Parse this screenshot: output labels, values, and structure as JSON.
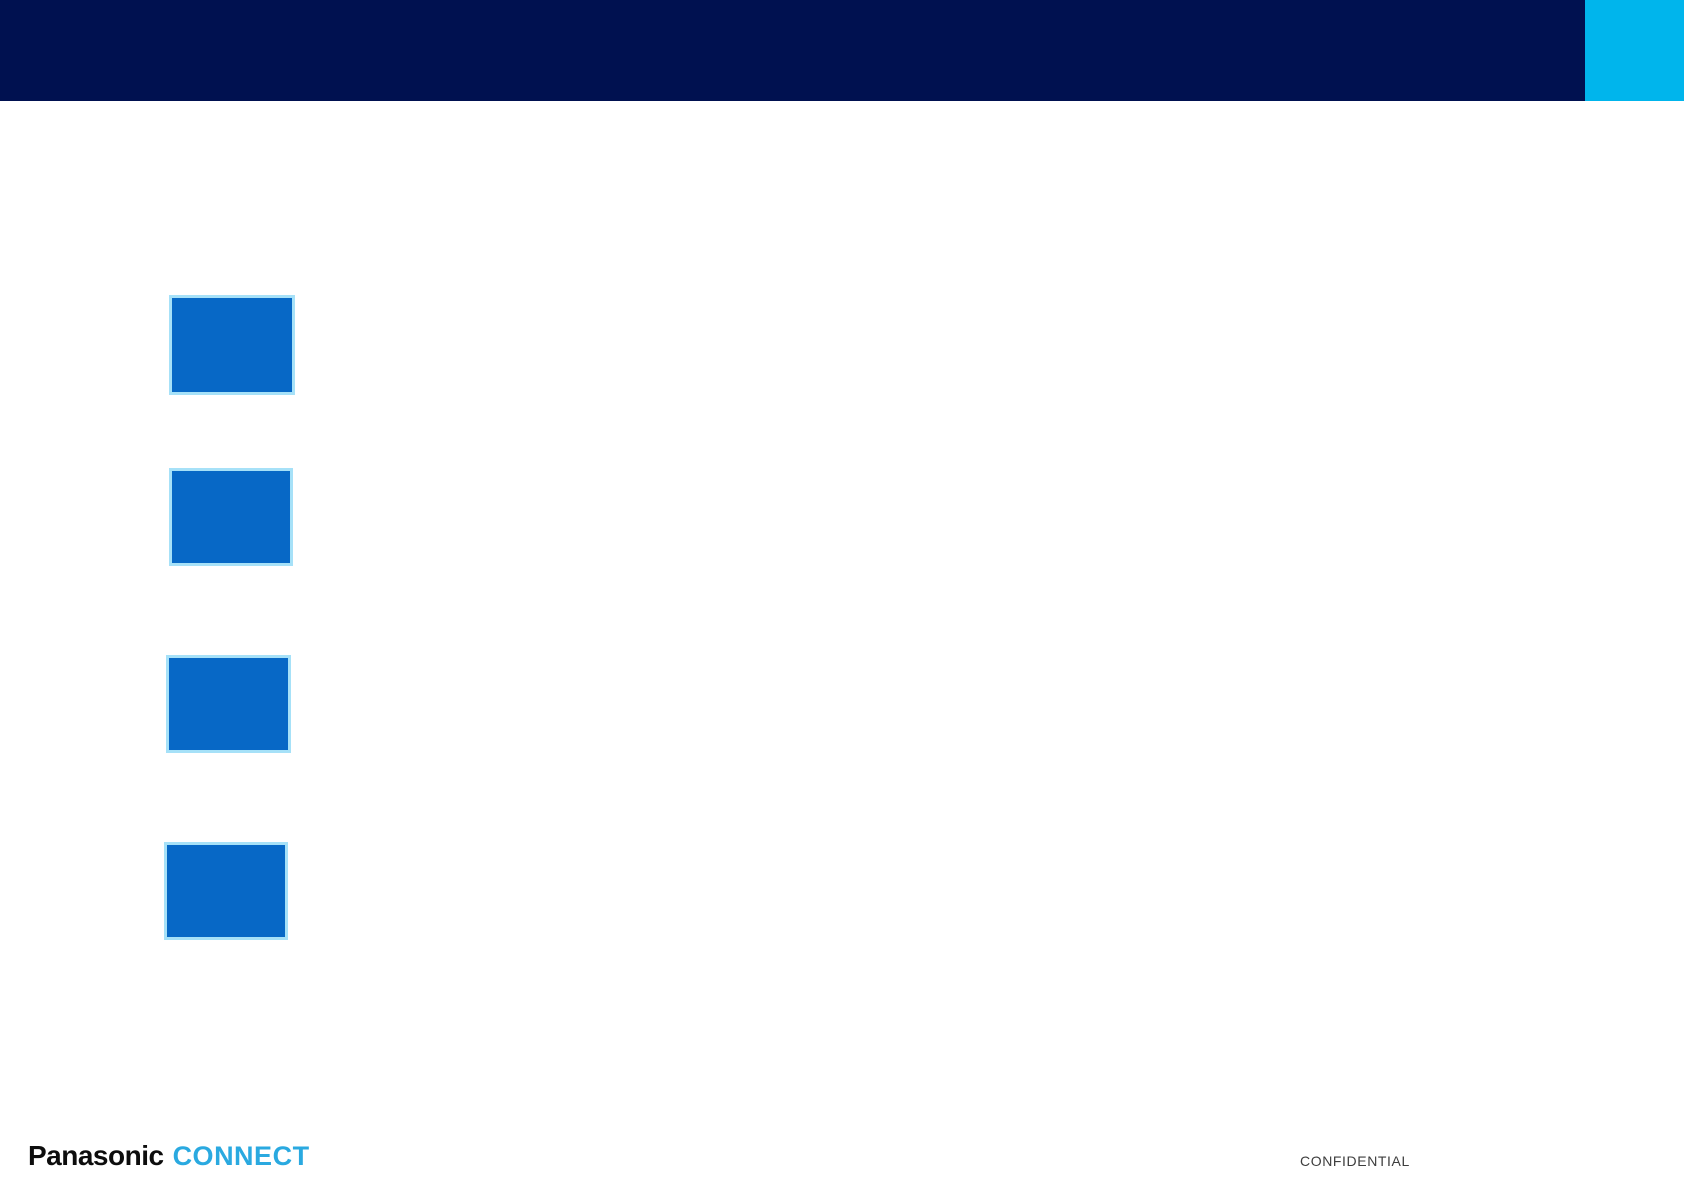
{
  "slide": {
    "header": {
      "bar_color": "#001150",
      "accent_square_color": "#00B5EC"
    },
    "image_placeholders": {
      "count": 4,
      "fill_color": "#0768C6",
      "border_color": "#A6E1F8"
    },
    "footer": {
      "logo": {
        "panasonic": "Panasonic",
        "connect": "CONNECT",
        "panasonic_color": "#0D0D0D",
        "connect_color": "#2AA9E0"
      },
      "confidential_label": "CONFIDENTIAL",
      "confidential_color": "#3D3D3D"
    }
  },
  "colors": {
    "navy": "#001150",
    "cyan": "#00B5EC",
    "ph-fill": "#0768C6",
    "ph-border": "#A6E1F8",
    "logo-black": "#0D0D0D",
    "logo-cyan": "#2AA9E0",
    "confidential-gray": "#3D3D3D",
    "page-bg": "#FFFFFF"
  }
}
